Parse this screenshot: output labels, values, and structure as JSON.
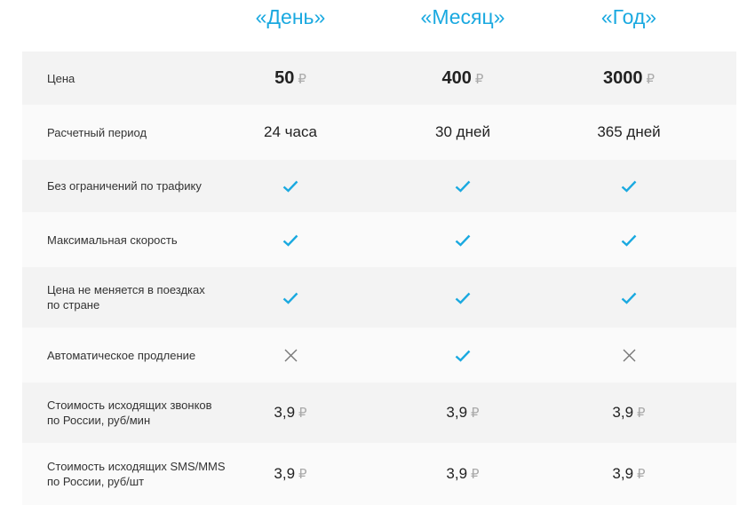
{
  "plans": [
    "«День»",
    "«Месяц»",
    "«Год»"
  ],
  "accent_color": "#1aa9e0",
  "currency_symbol": "₽",
  "rows": [
    {
      "label": "Цена",
      "type": "price_bold",
      "values": [
        "50",
        "400",
        "3000"
      ]
    },
    {
      "label": "Расчетный период",
      "type": "text",
      "values": [
        "24 часа",
        "30 дней",
        "365 дней"
      ]
    },
    {
      "label": "Без ограничений по трафику",
      "type": "bool",
      "values": [
        true,
        true,
        true
      ]
    },
    {
      "label": "Максимальная скорость",
      "type": "bool",
      "values": [
        true,
        true,
        true
      ]
    },
    {
      "label": "Цена не меняется в поездках\nпо стране",
      "type": "bool",
      "values": [
        true,
        true,
        true
      ]
    },
    {
      "label": "Автоматическое продление",
      "type": "bool",
      "values": [
        false,
        true,
        false
      ]
    },
    {
      "label": "Стоимость исходящих звонков\nпо России, руб/мин",
      "type": "price",
      "values": [
        "3,9",
        "3,9",
        "3,9"
      ]
    },
    {
      "label": "Стоимость исходящих SMS/MMS\nпо России, руб/шт",
      "type": "price",
      "values": [
        "3,9",
        "3,9",
        "3,9"
      ]
    }
  ]
}
